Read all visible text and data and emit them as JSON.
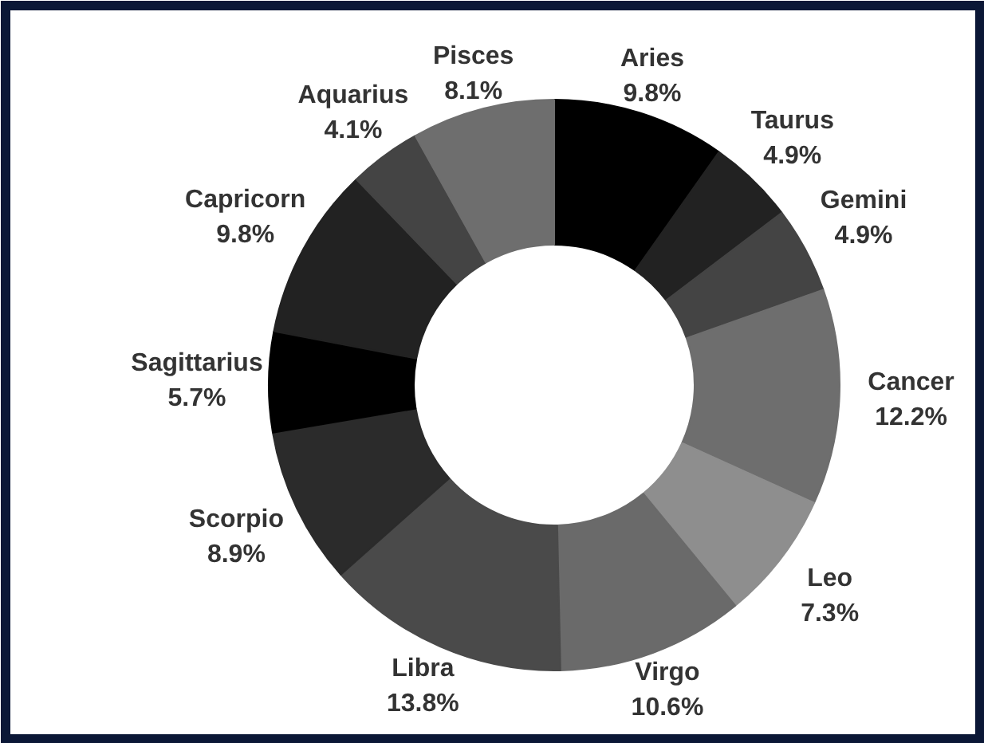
{
  "chart_data": {
    "type": "donut",
    "categories": [
      "Aries",
      "Taurus",
      "Gemini",
      "Cancer",
      "Leo",
      "Virgo",
      "Libra",
      "Scorpio",
      "Sagittarius",
      "Capricorn",
      "Aquarius",
      "Pisces"
    ],
    "values": [
      9.8,
      4.9,
      4.9,
      12.2,
      7.3,
      10.6,
      13.8,
      8.9,
      5.7,
      9.8,
      4.1,
      8.1
    ],
    "value_labels": [
      "9.8%",
      "4.9%",
      "4.9%",
      "12.2%",
      "7.3%",
      "10.6%",
      "13.8%",
      "8.9%",
      "5.7%",
      "9.8%",
      "4.1%",
      "8.1%"
    ],
    "colors": [
      "#000000",
      "#222222",
      "#444444",
      "#6e6e6e",
      "#8e8e8e",
      "#6a6a6a",
      "#4a4a4a",
      "#2b2b2b",
      "#000000",
      "#222222",
      "#444444",
      "#6e6e6e"
    ]
  }
}
